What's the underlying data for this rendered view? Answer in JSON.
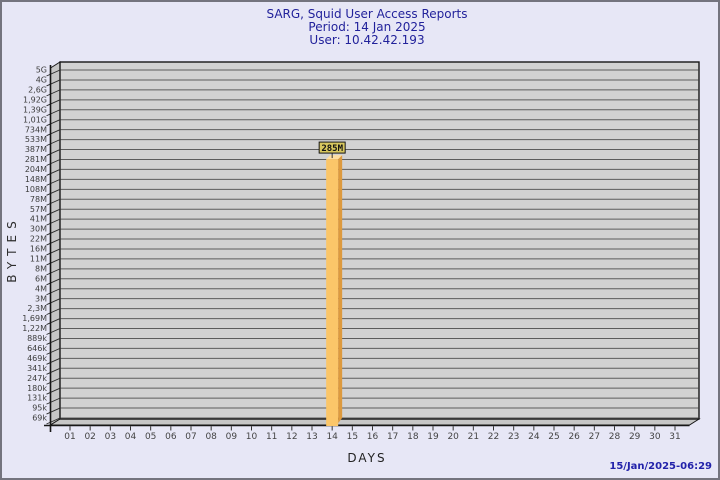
{
  "header": {
    "title": "SARG, Squid User Access Reports",
    "period": "Period: 14 Jan 2025",
    "user": "User: 10.42.42.193"
  },
  "footer": {
    "timestamp": "15/Jan/2025-06:29"
  },
  "chart_data": {
    "type": "bar",
    "title": "SARG, Squid User Access Reports",
    "subtitle_period": "Period: 14 Jan 2025",
    "subtitle_user": "User: 10.42.42.193",
    "xlabel": "DAYS",
    "ylabel": "BYTES",
    "y_scale": "log",
    "y_tick_labels": [
      "5G",
      "4G",
      "2,6G",
      "1,92G",
      "1,39G",
      "1,01G",
      "734M",
      "533M",
      "387M",
      "281M",
      "204M",
      "148M",
      "108M",
      "78M",
      "57M",
      "41M",
      "30M",
      "22M",
      "16M",
      "11M",
      "8M",
      "6M",
      "4M",
      "3M",
      "2,3M",
      "1,69M",
      "1,22M",
      "889k",
      "646k",
      "469k",
      "341k",
      "247k",
      "180k",
      "131k",
      "95k",
      "69k"
    ],
    "x_tick_labels": [
      "01",
      "02",
      "03",
      "04",
      "05",
      "06",
      "07",
      "08",
      "09",
      "10",
      "11",
      "12",
      "13",
      "14",
      "15",
      "16",
      "17",
      "18",
      "19",
      "20",
      "21",
      "22",
      "23",
      "24",
      "25",
      "26",
      "27",
      "28",
      "29",
      "30",
      "31"
    ],
    "bars": [
      {
        "day": "14",
        "value_label": "285M"
      }
    ],
    "footer_timestamp": "15/Jan/2025-06:29",
    "colors": {
      "background": "#e7e7f6",
      "plot_face": "#d2d2d2",
      "plot_wall": "#c6c6c6",
      "grid_line": "#5c5c5c",
      "axis_line": "#161616",
      "bar_front": "#fbc669",
      "bar_side": "#dd9a3e",
      "bar_top": "#ffdfa2",
      "value_box_bg": "#d8c75e",
      "title_text": "#22229b",
      "timestamp_text": "#2222aa",
      "tick_text": "#3c3c3c"
    }
  }
}
